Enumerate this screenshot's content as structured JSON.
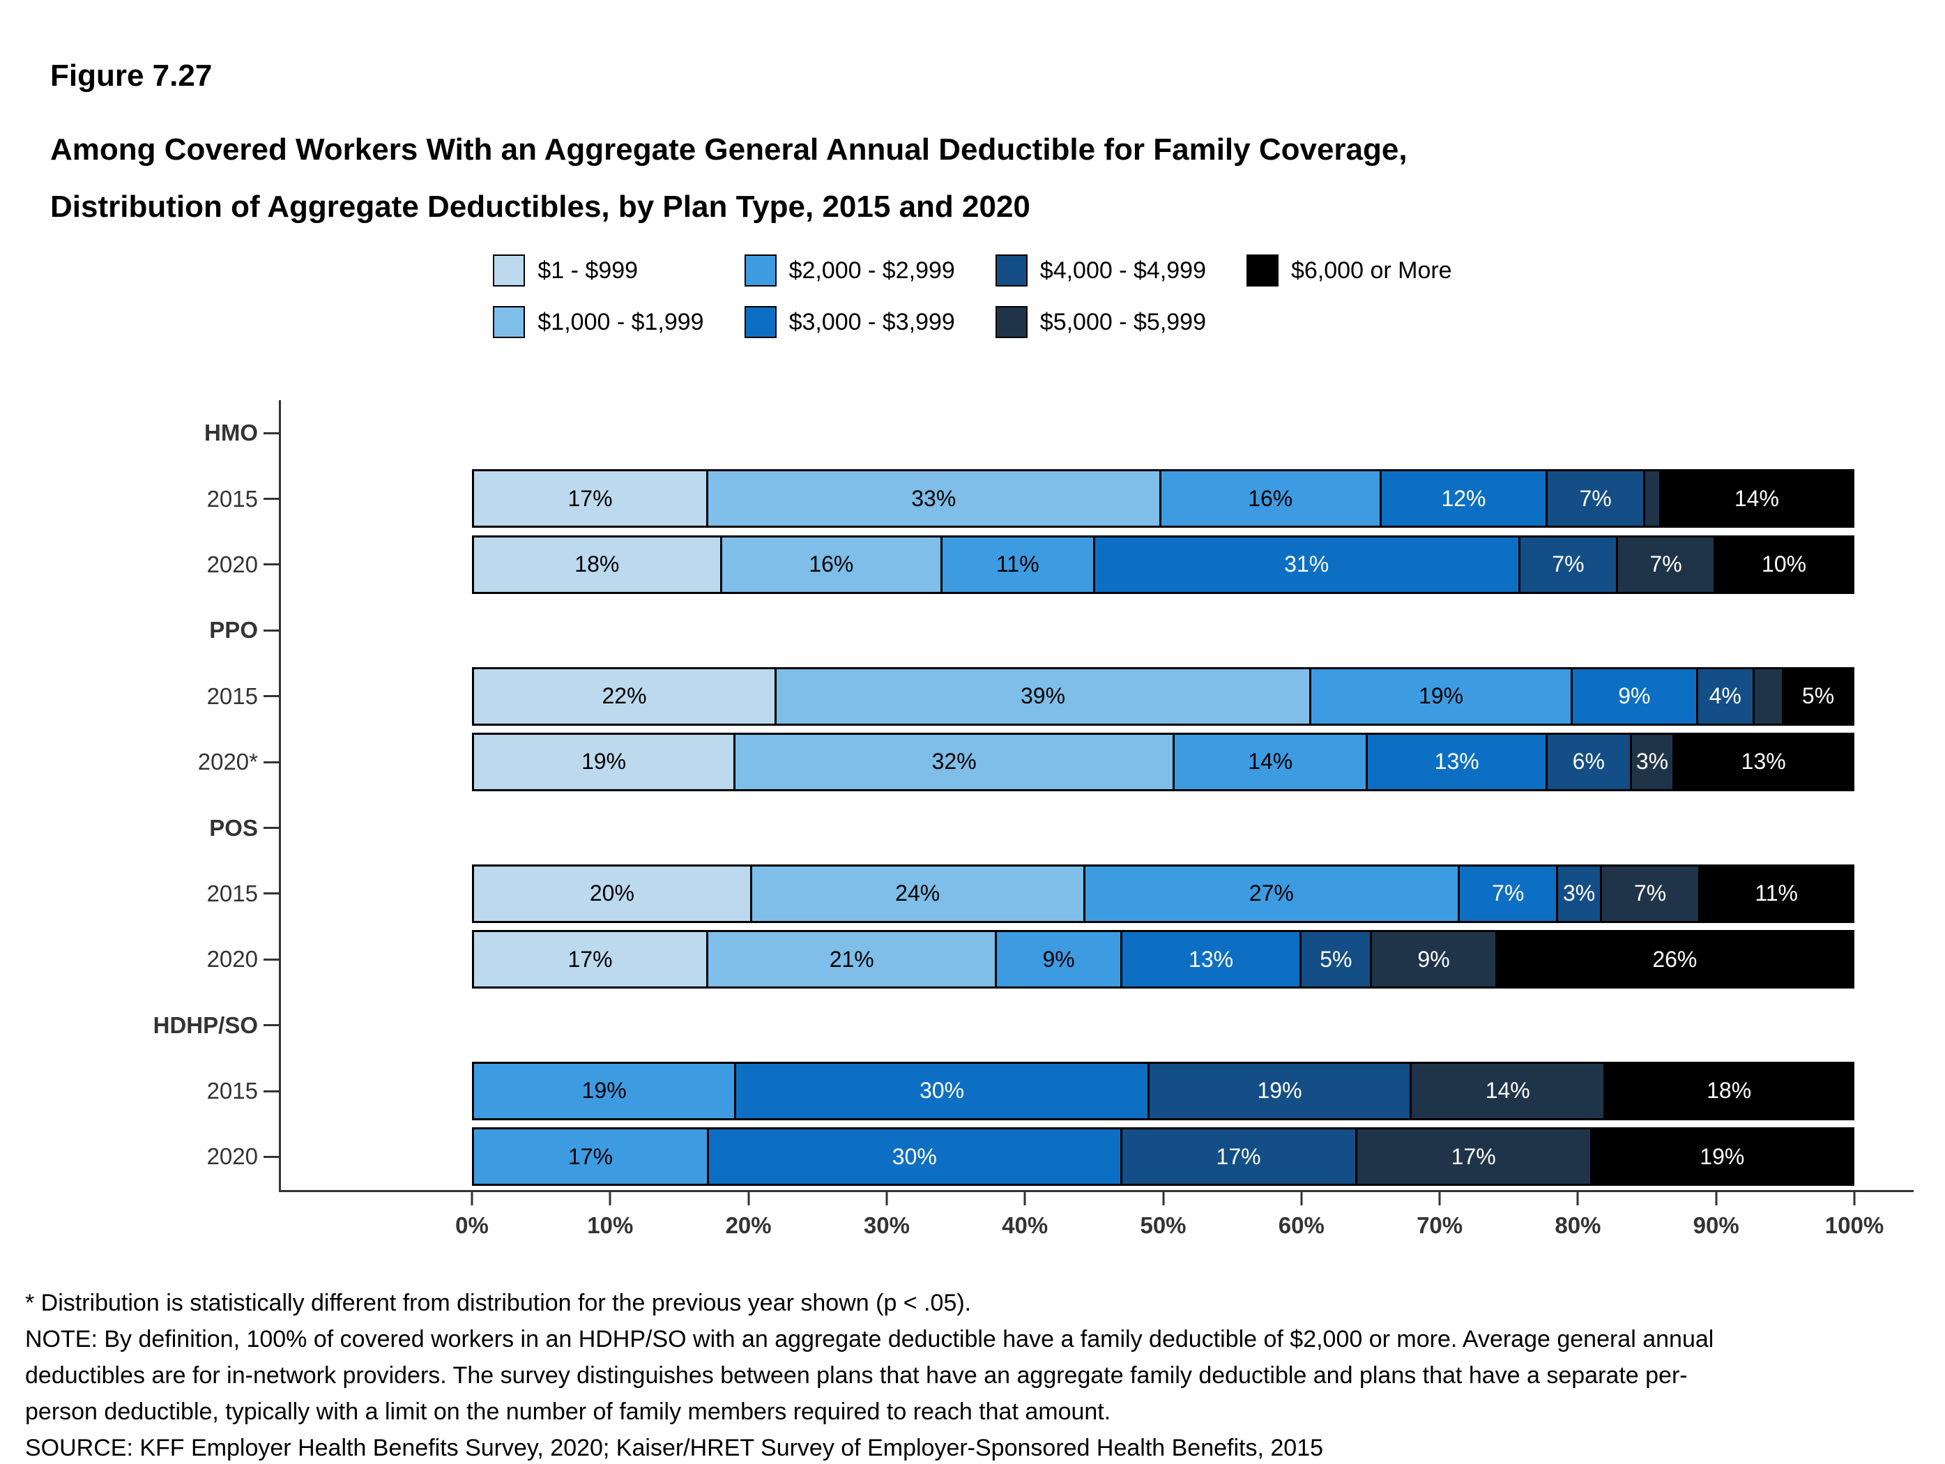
{
  "figure": {
    "number": "Figure 7.27",
    "title_line1": "Among Covered Workers With an Aggregate General Annual Deductible for Family Coverage,",
    "title_line2": "Distribution of Aggregate Deductibles, by Plan Type, 2015 and 2020"
  },
  "chart_data": {
    "type": "bar",
    "orientation": "horizontal-stacked",
    "title": "Among Covered Workers With an Aggregate General Annual Deductible for Family Coverage, Distribution of Aggregate Deductibles, by Plan Type, 2015 and 2020",
    "xlabel": "",
    "ylabel": "",
    "x_range": [
      0,
      100
    ],
    "grid": false,
    "legend_position": "top-center",
    "x_axis": {
      "ticks": [
        "0%",
        "10%",
        "20%",
        "30%",
        "40%",
        "50%",
        "60%",
        "70%",
        "80%",
        "90%",
        "100%"
      ]
    },
    "categories": [
      {
        "label": "$1 - $999",
        "color": "#BCD9EE",
        "text_color": "#000000"
      },
      {
        "label": "$1,000 - $1,999",
        "color": "#7EBEE8",
        "text_color": "#000000"
      },
      {
        "label": "$2,000 - $2,999",
        "color": "#3D9BE2",
        "text_color": "#000000"
      },
      {
        "label": "$3,000 - $3,999",
        "color": "#0D6FC3",
        "text_color": "#FFFFFF"
      },
      {
        "label": "$4,000 - $4,999",
        "color": "#144E86",
        "text_color": "#FFFFFF"
      },
      {
        "label": "$5,000 - $5,999",
        "color": "#203449",
        "text_color": "#FFFFFF"
      },
      {
        "label": "$6,000 or More",
        "color": "#000000",
        "text_color": "#FFFFFF"
      }
    ],
    "legend_columns": [
      [
        0,
        1
      ],
      [
        2,
        3
      ],
      [
        4,
        5
      ],
      [
        6
      ]
    ],
    "groups": [
      {
        "name": "HMO",
        "rows": [
          {
            "label": "2015",
            "segments": [
              {
                "category": 0,
                "value": 17
              },
              {
                "category": 1,
                "value": 33
              },
              {
                "category": 2,
                "value": 16
              },
              {
                "category": 3,
                "value": 12
              },
              {
                "category": 4,
                "value": 7
              },
              {
                "category": 5,
                "value": 1,
                "show_label": false
              },
              {
                "category": 6,
                "value": 14
              }
            ]
          },
          {
            "label": "2020",
            "segments": [
              {
                "category": 0,
                "value": 18
              },
              {
                "category": 1,
                "value": 16
              },
              {
                "category": 2,
                "value": 11
              },
              {
                "category": 3,
                "value": 31
              },
              {
                "category": 4,
                "value": 7
              },
              {
                "category": 5,
                "value": 7
              },
              {
                "category": 6,
                "value": 10
              }
            ]
          }
        ]
      },
      {
        "name": "PPO",
        "rows": [
          {
            "label": "2015",
            "segments": [
              {
                "category": 0,
                "value": 22
              },
              {
                "category": 1,
                "value": 39
              },
              {
                "category": 2,
                "value": 19
              },
              {
                "category": 3,
                "value": 9
              },
              {
                "category": 4,
                "value": 4
              },
              {
                "category": 5,
                "value": 2,
                "show_label": false
              },
              {
                "category": 6,
                "value": 5
              }
            ]
          },
          {
            "label": "2020*",
            "segments": [
              {
                "category": 0,
                "value": 19
              },
              {
                "category": 1,
                "value": 32
              },
              {
                "category": 2,
                "value": 14
              },
              {
                "category": 3,
                "value": 13
              },
              {
                "category": 4,
                "value": 6
              },
              {
                "category": 5,
                "value": 3
              },
              {
                "category": 6,
                "value": 13
              }
            ]
          }
        ]
      },
      {
        "name": "POS",
        "rows": [
          {
            "label": "2015",
            "segments": [
              {
                "category": 0,
                "value": 20
              },
              {
                "category": 1,
                "value": 24
              },
              {
                "category": 2,
                "value": 27
              },
              {
                "category": 3,
                "value": 7
              },
              {
                "category": 4,
                "value": 3
              },
              {
                "category": 5,
                "value": 7
              },
              {
                "category": 6,
                "value": 11
              }
            ]
          },
          {
            "label": "2020",
            "segments": [
              {
                "category": 0,
                "value": 17
              },
              {
                "category": 1,
                "value": 21
              },
              {
                "category": 2,
                "value": 9
              },
              {
                "category": 3,
                "value": 13
              },
              {
                "category": 4,
                "value": 5
              },
              {
                "category": 5,
                "value": 9
              },
              {
                "category": 6,
                "value": 26
              }
            ]
          }
        ]
      },
      {
        "name": "HDHP/SO",
        "rows": [
          {
            "label": "2015",
            "segments": [
              {
                "category": 2,
                "value": 19
              },
              {
                "category": 3,
                "value": 30
              },
              {
                "category": 4,
                "value": 19
              },
              {
                "category": 5,
                "value": 14
              },
              {
                "category": 6,
                "value": 18
              }
            ]
          },
          {
            "label": "2020",
            "segments": [
              {
                "category": 2,
                "value": 17
              },
              {
                "category": 3,
                "value": 30
              },
              {
                "category": 4,
                "value": 17
              },
              {
                "category": 5,
                "value": 17
              },
              {
                "category": 6,
                "value": 19
              }
            ]
          }
        ]
      }
    ]
  },
  "footnotes": {
    "asterisk": "* Distribution is statistically different from distribution for the previous year shown (p < .05).",
    "note": "NOTE: By definition, 100% of covered workers in an HDHP/SO with an aggregate deductible have a family deductible of $2,000 or more. Average general annual deductibles are for in-network providers. The survey distinguishes between plans that have an aggregate family deductible and plans that have a separate per-person deductible, typically with a limit on the number of family members required to reach that amount.",
    "source": "SOURCE: KFF Employer Health Benefits Survey, 2020; Kaiser/HRET Survey of Employer-Sponsored Health Benefits, 2015"
  }
}
